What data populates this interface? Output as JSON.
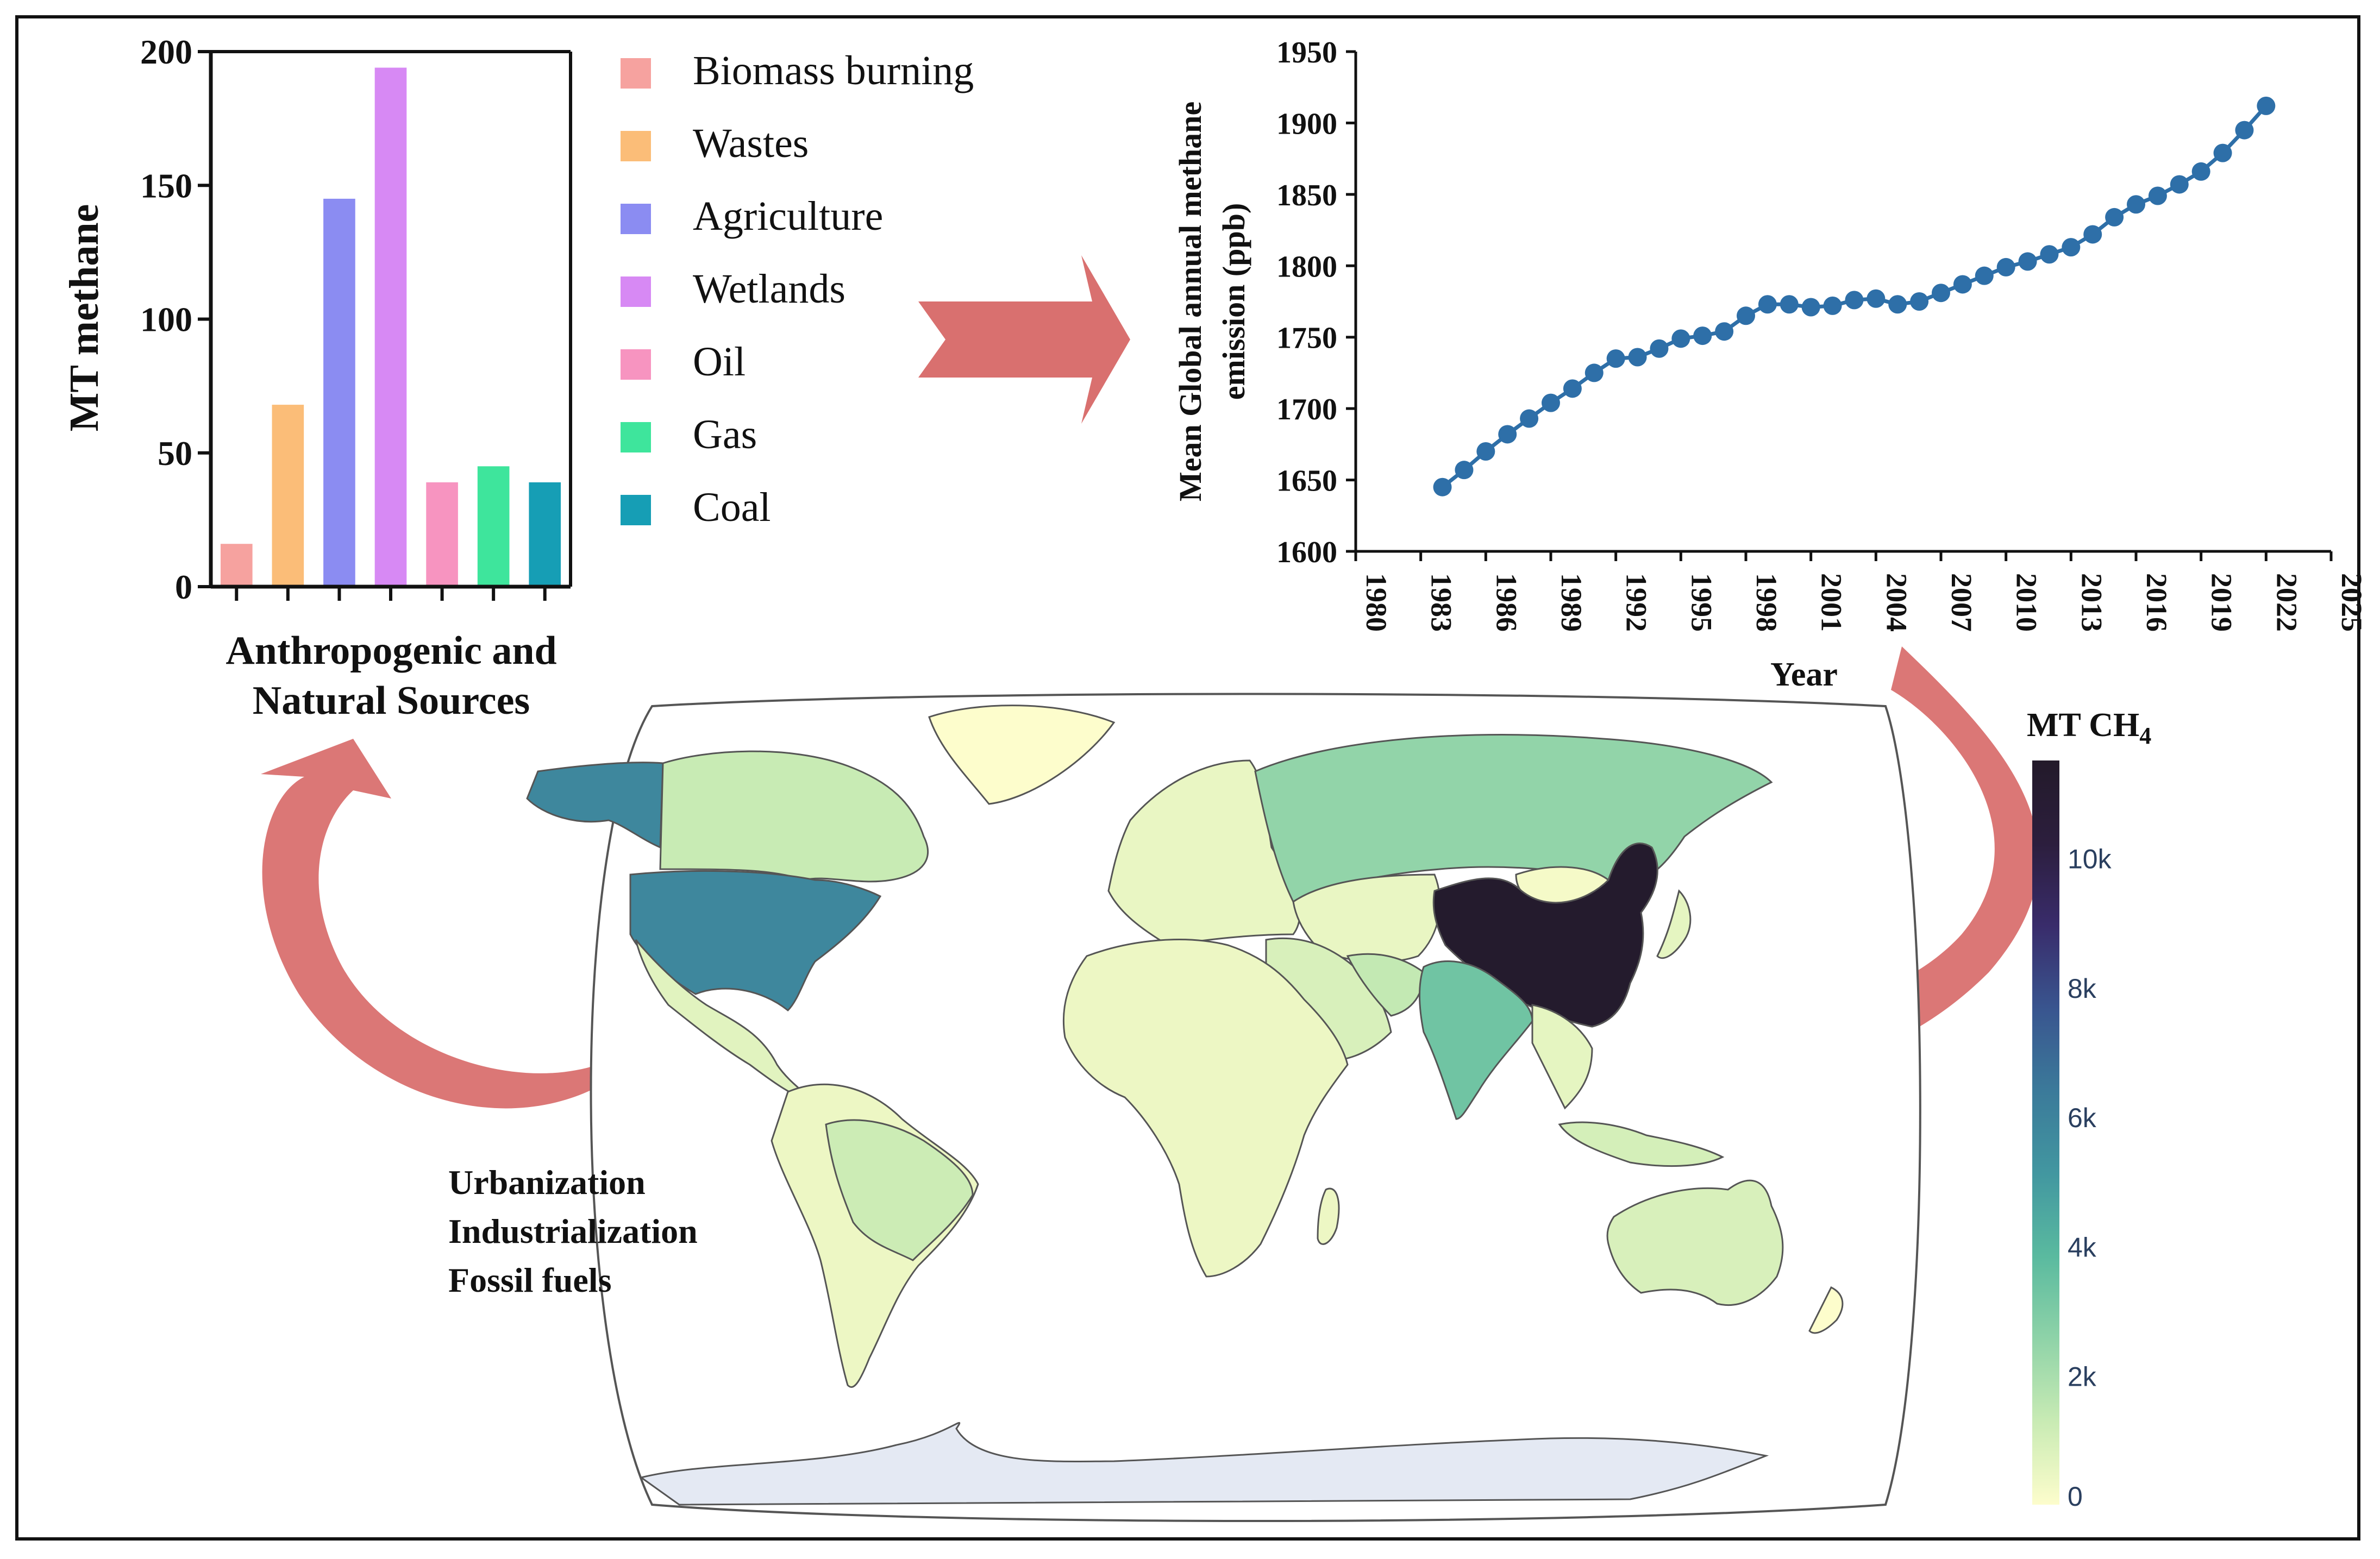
{
  "colors": {
    "frame": "#111111",
    "arrow": "#d9706f",
    "line_series": "#2e6fa8",
    "land_low": "#f7f6cb",
    "ocean": "#ffffff",
    "antarctica": "#e4e9f3"
  },
  "chart_data": [
    {
      "type": "bar",
      "ylabel": "MT methane",
      "xlabel": "Anthropogenic and Natural Sources",
      "ylim": [
        0,
        200
      ],
      "yticks": [
        "0",
        "50",
        "100",
        "150",
        "200"
      ],
      "categories": [
        "Biomass burning",
        "Wastes",
        "Agriculture",
        "Wetlands",
        "Oil",
        "Gas",
        "Coal"
      ],
      "values": [
        16,
        68,
        145,
        194,
        39,
        45,
        39
      ],
      "colors": [
        "#f6a29f",
        "#fbbd78",
        "#8b8cf2",
        "#d789f4",
        "#f794c0",
        "#3ee59c",
        "#169eb5"
      ],
      "legend": [
        {
          "label": "Biomass burning",
          "color": "#f6a29f"
        },
        {
          "label": "Wastes",
          "color": "#fbbd78"
        },
        {
          "label": "Agriculture",
          "color": "#8b8cf2"
        },
        {
          "label": "Wetlands",
          "color": "#d789f4"
        },
        {
          "label": "Oil",
          "color": "#f794c0"
        },
        {
          "label": "Gas",
          "color": "#3ee59c"
        },
        {
          "label": "Coal",
          "color": "#169eb5"
        }
      ]
    },
    {
      "type": "line",
      "ylabel_line1": "Mean Global annual methane",
      "ylabel_line2": "emission (ppb)",
      "xlabel": "Year",
      "xlim": [
        1980,
        2025
      ],
      "ylim": [
        1600,
        1950
      ],
      "xticks": [
        "1980",
        "1983",
        "1986",
        "1989",
        "1992",
        "1995",
        "1998",
        "2001",
        "2004",
        "2007",
        "2010",
        "2013",
        "2016",
        "2019",
        "2022",
        "2025"
      ],
      "yticks": [
        "1600",
        "1650",
        "1700",
        "1750",
        "1800",
        "1850",
        "1900",
        "1950"
      ],
      "x": [
        1984,
        1985,
        1986,
        1987,
        1988,
        1989,
        1990,
        1991,
        1992,
        1993,
        1994,
        1995,
        1996,
        1997,
        1998,
        1999,
        2000,
        2001,
        2002,
        2003,
        2004,
        2005,
        2006,
        2007,
        2008,
        2009,
        2010,
        2011,
        2012,
        2013,
        2014,
        2015,
        2016,
        2017,
        2018,
        2019,
        2020,
        2021,
        2022
      ],
      "y": [
        1645,
        1657,
        1670,
        1682,
        1693,
        1704,
        1714,
        1725,
        1735,
        1736,
        1742,
        1749,
        1751,
        1754,
        1765,
        1773,
        1773,
        1771,
        1772,
        1776,
        1777,
        1773,
        1775,
        1781,
        1787,
        1793,
        1799,
        1803,
        1808,
        1813,
        1822,
        1834,
        1843,
        1849,
        1857,
        1866,
        1879,
        1895,
        1912
      ],
      "series_name": "Mean Global annual methane"
    },
    {
      "type": "heatmap",
      "colorbar_title": "MT CH",
      "colorbar_subscript": "4",
      "range": [
        0,
        11500
      ],
      "colorbar_ticks": [
        "0",
        "2k",
        "4k",
        "6k",
        "8k",
        "10k"
      ],
      "colorbar_tick_values": [
        0,
        2000,
        4000,
        6000,
        8000,
        10000
      ],
      "colorscale": [
        "#fdfdcc",
        "#c9ebb4",
        "#8fd3a8",
        "#5aba9f",
        "#4297a0",
        "#3b7a9a",
        "#39558f",
        "#392c6b",
        "#2c1e3d",
        "#231a2a"
      ],
      "regions": [
        {
          "name": "China",
          "value": 11300
        },
        {
          "name": "United States",
          "value": 5800
        },
        {
          "name": "Alaska",
          "value": 5800
        },
        {
          "name": "India",
          "value": 3300
        },
        {
          "name": "Russia",
          "value": 2500
        },
        {
          "name": "Canada",
          "value": 1300
        },
        {
          "name": "Brazil",
          "value": 1200
        },
        {
          "name": "Australia",
          "value": 900
        },
        {
          "name": "Indonesia",
          "value": 1000
        },
        {
          "name": "Iran",
          "value": 1400
        },
        {
          "name": "Saudi Arabia",
          "value": 900
        },
        {
          "name": "Mexico",
          "value": 700
        },
        {
          "name": "Argentina",
          "value": 500
        },
        {
          "name": "Africa",
          "value": 400
        },
        {
          "name": "Europe",
          "value": 500
        },
        {
          "name": "Southeast Asia",
          "value": 600
        },
        {
          "name": "Central Asia",
          "value": 500
        },
        {
          "name": "Mongolia",
          "value": 200
        },
        {
          "name": "South America other",
          "value": 400
        },
        {
          "name": "Greenland",
          "value": 0
        }
      ]
    }
  ],
  "drivers": [
    "Urbanization",
    "Industrialization",
    "Fossil fuels"
  ]
}
